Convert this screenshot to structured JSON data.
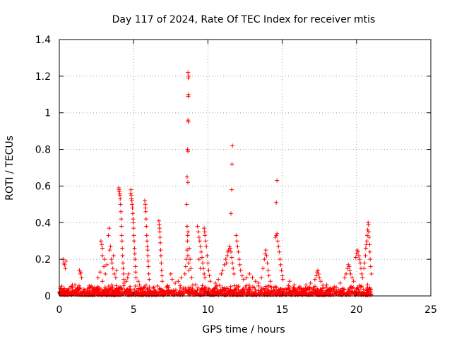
{
  "chart_data": {
    "type": "scatter",
    "title": "Day 117 of 2024, Rate Of TEC Index for receiver mtis",
    "xlabel": "GPS time / hours",
    "ylabel": "ROTI / TECUs",
    "xlim": [
      0,
      25
    ],
    "ylim": [
      0,
      1.4
    ],
    "xticks": [
      0,
      5,
      10,
      15,
      20,
      25
    ],
    "xtick_labels": [
      "0",
      "5",
      "10",
      "15",
      "20",
      "25"
    ],
    "yticks": [
      0,
      0.2,
      0.4,
      0.6,
      0.8,
      1.0,
      1.2,
      1.4
    ],
    "ytick_labels": [
      "0",
      "0.2",
      "0.4",
      "0.6",
      "0.8",
      "1",
      "1.2",
      "1.4"
    ],
    "grid": true,
    "marker": "+",
    "marker_color": "#ff0000",
    "series": [
      {
        "name": "ROTI",
        "points": [
          [
            0.25,
            0.2
          ],
          [
            0.3,
            0.18
          ],
          [
            0.35,
            0.17
          ],
          [
            0.4,
            0.15
          ],
          [
            0.45,
            0.19
          ],
          [
            1.35,
            0.14
          ],
          [
            1.4,
            0.12
          ],
          [
            1.45,
            0.13
          ],
          [
            1.5,
            0.1
          ],
          [
            2.6,
            0.1
          ],
          [
            2.75,
            0.13
          ],
          [
            2.9,
            0.22
          ],
          [
            2.9,
            0.08
          ],
          [
            3.0,
            0.16
          ],
          [
            3.05,
            0.2
          ],
          [
            2.8,
            0.3
          ],
          [
            2.85,
            0.28
          ],
          [
            2.9,
            0.26
          ],
          [
            3.1,
            0.12
          ],
          [
            3.2,
            0.17
          ],
          [
            3.3,
            0.33
          ],
          [
            3.35,
            0.37
          ],
          [
            3.4,
            0.25
          ],
          [
            3.45,
            0.27
          ],
          [
            3.5,
            0.2
          ],
          [
            3.55,
            0.18
          ],
          [
            3.6,
            0.15
          ],
          [
            3.65,
            0.22
          ],
          [
            3.7,
            0.12
          ],
          [
            3.8,
            0.1
          ],
          [
            3.85,
            0.14
          ],
          [
            4.0,
            0.59
          ],
          [
            4.02,
            0.58
          ],
          [
            4.04,
            0.57
          ],
          [
            4.06,
            0.56
          ],
          [
            4.08,
            0.55
          ],
          [
            4.1,
            0.53
          ],
          [
            4.12,
            0.5
          ],
          [
            4.14,
            0.46
          ],
          [
            4.16,
            0.42
          ],
          [
            4.18,
            0.38
          ],
          [
            4.2,
            0.33
          ],
          [
            4.22,
            0.3
          ],
          [
            4.24,
            0.26
          ],
          [
            4.26,
            0.22
          ],
          [
            4.28,
            0.18
          ],
          [
            4.3,
            0.15
          ],
          [
            4.32,
            0.12
          ],
          [
            4.34,
            0.09
          ],
          [
            4.36,
            0.07
          ],
          [
            4.5,
            0.08
          ],
          [
            4.6,
            0.1
          ],
          [
            4.65,
            0.12
          ],
          [
            4.8,
            0.56
          ],
          [
            4.82,
            0.58
          ],
          [
            4.84,
            0.55
          ],
          [
            4.86,
            0.53
          ],
          [
            4.88,
            0.52
          ],
          [
            4.9,
            0.5
          ],
          [
            4.92,
            0.48
          ],
          [
            4.94,
            0.45
          ],
          [
            4.96,
            0.42
          ],
          [
            4.98,
            0.4
          ],
          [
            5.0,
            0.37
          ],
          [
            5.02,
            0.33
          ],
          [
            5.04,
            0.3
          ],
          [
            5.06,
            0.26
          ],
          [
            5.08,
            0.23
          ],
          [
            5.1,
            0.2
          ],
          [
            5.12,
            0.16
          ],
          [
            5.14,
            0.13
          ],
          [
            5.16,
            0.1
          ],
          [
            5.3,
            0.08
          ],
          [
            5.4,
            0.06
          ],
          [
            5.75,
            0.52
          ],
          [
            5.78,
            0.5
          ],
          [
            5.8,
            0.48
          ],
          [
            5.82,
            0.46
          ],
          [
            5.84,
            0.42
          ],
          [
            5.86,
            0.38
          ],
          [
            5.88,
            0.33
          ],
          [
            5.9,
            0.3
          ],
          [
            5.92,
            0.27
          ],
          [
            5.94,
            0.25
          ],
          [
            5.96,
            0.22
          ],
          [
            5.98,
            0.19
          ],
          [
            6.0,
            0.16
          ],
          [
            6.02,
            0.12
          ],
          [
            6.05,
            0.09
          ],
          [
            6.7,
            0.41
          ],
          [
            6.72,
            0.39
          ],
          [
            6.74,
            0.37
          ],
          [
            6.76,
            0.35
          ],
          [
            6.78,
            0.32
          ],
          [
            6.8,
            0.29
          ],
          [
            6.82,
            0.25
          ],
          [
            6.84,
            0.22
          ],
          [
            6.86,
            0.18
          ],
          [
            6.88,
            0.14
          ],
          [
            6.9,
            0.11
          ],
          [
            6.92,
            0.08
          ],
          [
            7.5,
            0.12
          ],
          [
            7.6,
            0.09
          ],
          [
            7.8,
            0.07
          ],
          [
            8.0,
            0.08
          ],
          [
            8.2,
            0.1
          ],
          [
            8.45,
            0.12
          ],
          [
            8.5,
            0.16
          ],
          [
            8.55,
            0.2
          ],
          [
            8.6,
            0.25
          ],
          [
            8.62,
            0.3
          ],
          [
            8.64,
            0.33
          ],
          [
            8.66,
            0.35
          ],
          [
            8.6,
            0.38
          ],
          [
            8.65,
            0.22
          ],
          [
            8.7,
            0.18
          ],
          [
            8.72,
            0.14
          ],
          [
            8.58,
            0.5
          ],
          [
            8.6,
            0.65
          ],
          [
            8.65,
            0.62
          ],
          [
            8.63,
            0.8
          ],
          [
            8.65,
            0.79
          ],
          [
            8.66,
            0.96
          ],
          [
            8.68,
            0.95
          ],
          [
            8.67,
            1.09
          ],
          [
            8.69,
            1.1
          ],
          [
            8.68,
            1.19
          ],
          [
            8.7,
            1.2
          ],
          [
            8.66,
            1.22
          ],
          [
            8.75,
            0.26
          ],
          [
            8.8,
            0.2
          ],
          [
            8.85,
            0.15
          ],
          [
            8.9,
            0.1
          ],
          [
            9.3,
            0.38
          ],
          [
            9.35,
            0.35
          ],
          [
            9.4,
            0.32
          ],
          [
            9.45,
            0.3
          ],
          [
            9.5,
            0.27
          ],
          [
            9.55,
            0.24
          ],
          [
            9.6,
            0.21
          ],
          [
            9.65,
            0.18
          ],
          [
            9.7,
            0.15
          ],
          [
            9.75,
            0.12
          ],
          [
            9.8,
            0.1
          ],
          [
            9.4,
            0.2
          ],
          [
            9.5,
            0.15
          ],
          [
            9.75,
            0.37
          ],
          [
            9.78,
            0.35
          ],
          [
            9.8,
            0.33
          ],
          [
            9.85,
            0.3
          ],
          [
            9.9,
            0.27
          ],
          [
            9.95,
            0.22
          ],
          [
            10.0,
            0.18
          ],
          [
            10.05,
            0.14
          ],
          [
            10.1,
            0.11
          ],
          [
            10.15,
            0.08
          ],
          [
            10.5,
            0.07
          ],
          [
            10.7,
            0.09
          ],
          [
            10.9,
            0.12
          ],
          [
            11.0,
            0.14
          ],
          [
            11.1,
            0.17
          ],
          [
            11.2,
            0.2
          ],
          [
            11.25,
            0.18
          ],
          [
            11.3,
            0.22
          ],
          [
            11.35,
            0.24
          ],
          [
            11.4,
            0.25
          ],
          [
            11.45,
            0.27
          ],
          [
            11.5,
            0.26
          ],
          [
            11.55,
            0.24
          ],
          [
            11.6,
            0.21
          ],
          [
            11.65,
            0.18
          ],
          [
            11.7,
            0.15
          ],
          [
            11.75,
            0.12
          ],
          [
            11.55,
            0.45
          ],
          [
            11.6,
            0.58
          ],
          [
            11.62,
            0.72
          ],
          [
            11.65,
            0.82
          ],
          [
            11.9,
            0.33
          ],
          [
            11.95,
            0.3
          ],
          [
            12.0,
            0.27
          ],
          [
            12.05,
            0.24
          ],
          [
            12.1,
            0.2
          ],
          [
            12.15,
            0.17
          ],
          [
            12.2,
            0.14
          ],
          [
            12.3,
            0.11
          ],
          [
            12.4,
            0.09
          ],
          [
            12.6,
            0.1
          ],
          [
            12.8,
            0.12
          ],
          [
            13.0,
            0.1
          ],
          [
            13.2,
            0.08
          ],
          [
            13.4,
            0.07
          ],
          [
            13.6,
            0.1
          ],
          [
            13.7,
            0.15
          ],
          [
            13.8,
            0.2
          ],
          [
            13.85,
            0.23
          ],
          [
            13.9,
            0.25
          ],
          [
            13.95,
            0.22
          ],
          [
            14.0,
            0.18
          ],
          [
            14.05,
            0.14
          ],
          [
            14.1,
            0.11
          ],
          [
            14.2,
            0.08
          ],
          [
            14.55,
            0.32
          ],
          [
            14.6,
            0.33
          ],
          [
            14.65,
            0.34
          ],
          [
            14.7,
            0.3
          ],
          [
            14.75,
            0.27
          ],
          [
            14.8,
            0.24
          ],
          [
            14.85,
            0.2
          ],
          [
            14.9,
            0.17
          ],
          [
            14.95,
            0.14
          ],
          [
            15.0,
            0.11
          ],
          [
            15.05,
            0.09
          ],
          [
            14.6,
            0.51
          ],
          [
            14.65,
            0.63
          ],
          [
            15.5,
            0.08
          ],
          [
            15.8,
            0.06
          ],
          [
            16.2,
            0.05
          ],
          [
            16.6,
            0.06
          ],
          [
            16.9,
            0.07
          ],
          [
            17.2,
            0.09
          ],
          [
            17.3,
            0.11
          ],
          [
            17.35,
            0.13
          ],
          [
            17.4,
            0.14
          ],
          [
            17.45,
            0.12
          ],
          [
            17.5,
            0.1
          ],
          [
            17.6,
            0.08
          ],
          [
            18.0,
            0.06
          ],
          [
            18.5,
            0.05
          ],
          [
            18.9,
            0.07
          ],
          [
            19.2,
            0.1
          ],
          [
            19.3,
            0.12
          ],
          [
            19.4,
            0.15
          ],
          [
            19.45,
            0.17
          ],
          [
            19.5,
            0.16
          ],
          [
            19.55,
            0.14
          ],
          [
            19.6,
            0.12
          ],
          [
            19.7,
            0.1
          ],
          [
            19.8,
            0.08
          ],
          [
            19.95,
            0.21
          ],
          [
            20.0,
            0.23
          ],
          [
            20.05,
            0.25
          ],
          [
            20.1,
            0.24
          ],
          [
            20.15,
            0.22
          ],
          [
            20.2,
            0.2
          ],
          [
            20.25,
            0.18
          ],
          [
            20.3,
            0.15
          ],
          [
            20.35,
            0.12
          ],
          [
            20.4,
            0.1
          ],
          [
            20.5,
            0.15
          ],
          [
            20.55,
            0.18
          ],
          [
            20.6,
            0.22
          ],
          [
            20.62,
            0.26
          ],
          [
            20.65,
            0.28
          ],
          [
            20.7,
            0.3
          ],
          [
            20.72,
            0.33
          ],
          [
            20.75,
            0.36
          ],
          [
            20.78,
            0.4
          ],
          [
            20.8,
            0.39
          ],
          [
            20.82,
            0.35
          ],
          [
            20.85,
            0.32
          ],
          [
            20.88,
            0.28
          ],
          [
            20.9,
            0.24
          ],
          [
            20.92,
            0.2
          ],
          [
            20.95,
            0.16
          ],
          [
            21.0,
            0.12
          ]
        ]
      }
    ]
  }
}
